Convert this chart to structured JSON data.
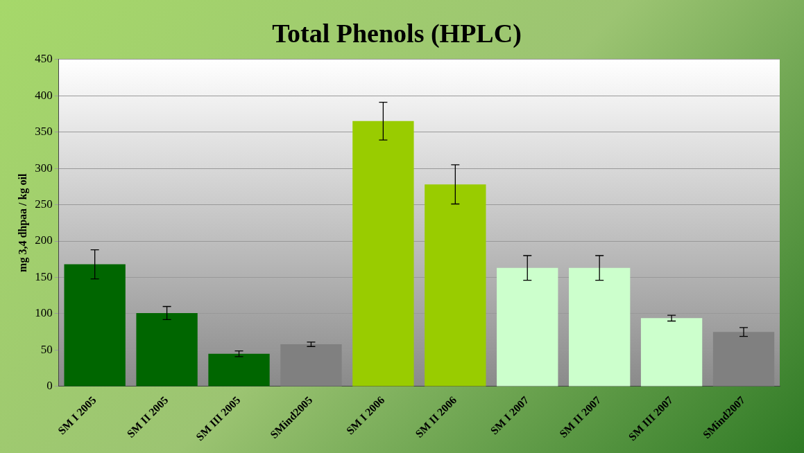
{
  "chart_data": {
    "type": "bar",
    "title": "Total Phenols (HPLC)",
    "ylabel": "mg 3,4 dhpaa / kg oil",
    "categories": [
      "SM I 2005",
      "SM II 2005",
      "SM III 2005",
      "SMind2005",
      "SM I 2006",
      "SM II 2006",
      "SM I 2007",
      "SM II 2007",
      "SM III 2007",
      "SMind2007"
    ],
    "values": [
      168,
      101,
      45,
      58,
      365,
      278,
      163,
      163,
      94,
      75
    ],
    "colors": [
      "#006600",
      "#006600",
      "#006600",
      "#808080",
      "#99cc00",
      "#99cc00",
      "#ccffcc",
      "#ccffcc",
      "#ccffcc",
      "#808080"
    ],
    "errors": [
      20,
      9,
      4,
      3,
      26,
      27,
      17,
      17,
      4,
      6
    ],
    "ylim": [
      0,
      450
    ],
    "yticks": [
      0,
      50,
      100,
      150,
      200,
      250,
      300,
      350,
      400,
      450
    ],
    "grid": "y",
    "legend": false
  }
}
